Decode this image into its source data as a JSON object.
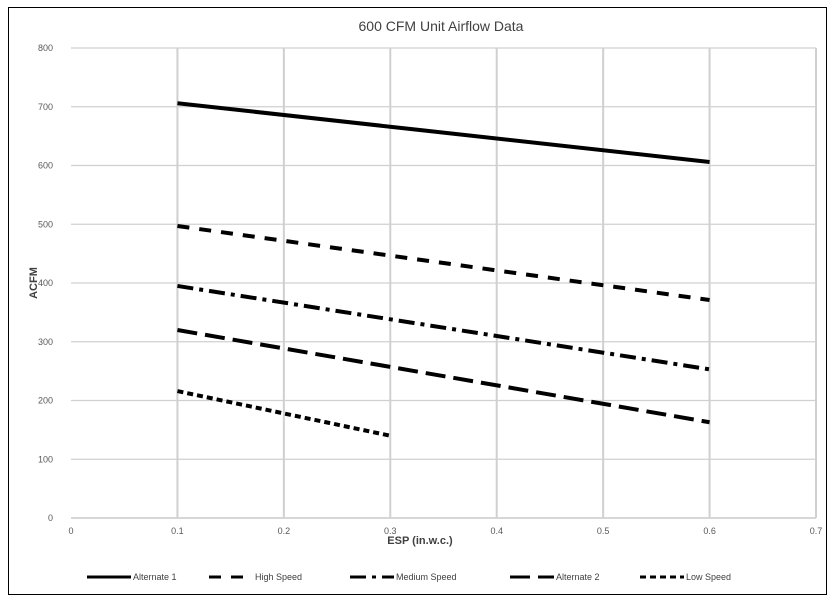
{
  "chart_data": {
    "type": "line",
    "title": "600 CFM Unit Airflow Data",
    "xlabel": "ESP (in.w.c.)",
    "ylabel": "ACFM",
    "xlim": [
      0,
      0.7
    ],
    "ylim": [
      0,
      800
    ],
    "x_ticks": [
      "0",
      "0.1",
      "0.2",
      "0.3",
      "0.4",
      "0.5",
      "0.6",
      "0.7"
    ],
    "y_ticks": [
      "0",
      "100",
      "200",
      "300",
      "400",
      "500",
      "600",
      "700",
      "800"
    ],
    "grid": true,
    "legend_position": "bottom",
    "series": [
      {
        "name": "Alternate 1",
        "style": "solid",
        "x": [
          0.1,
          0.6
        ],
        "y": [
          706,
          606
        ]
      },
      {
        "name": "High Speed",
        "style": "dash",
        "x": [
          0.1,
          0.6
        ],
        "y": [
          497,
          371
        ]
      },
      {
        "name": "Medium Speed",
        "style": "dashdot",
        "x": [
          0.1,
          0.6
        ],
        "y": [
          395,
          253
        ]
      },
      {
        "name": "Alternate 2",
        "style": "longdash",
        "x": [
          0.1,
          0.6
        ],
        "y": [
          320,
          163
        ]
      },
      {
        "name": "Low Speed",
        "style": "dot",
        "x": [
          0.1,
          0.3
        ],
        "y": [
          216,
          140
        ]
      }
    ],
    "colors": {
      "line": "#000000",
      "grid": "#d0d0d0",
      "text": "#595959"
    }
  }
}
